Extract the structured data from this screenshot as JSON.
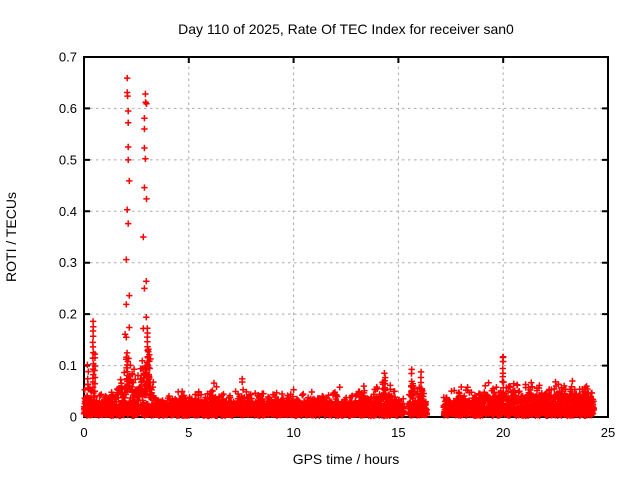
{
  "page": {
    "background": "#ffffff",
    "description": "gnuplot scatter plot of ROTI values versus GPS time"
  },
  "chart_data": {
    "type": "scatter",
    "title": "Day 110 of 2025, Rate Of TEC Index for receiver san0",
    "xlabel": "GPS time / hours",
    "ylabel": "ROTI / TECUs",
    "xlim": [
      0,
      25
    ],
    "ylim": [
      0,
      0.7
    ],
    "xticks": [
      0,
      5,
      10,
      15,
      20,
      25
    ],
    "xtick_labels": [
      "0",
      "5",
      "10",
      "15",
      "20",
      "25"
    ],
    "yticks": [
      0,
      0.1,
      0.2,
      0.3,
      0.4,
      0.5,
      0.6,
      0.7
    ],
    "ytick_labels": [
      "0",
      "0.1",
      "0.2",
      "0.3",
      "0.4",
      "0.5",
      "0.6",
      "0.7"
    ],
    "grid": true,
    "legend_position": "none",
    "marker": "plus",
    "marker_color": "#ff0000",
    "grid_color": "#aaaaaa",
    "border_color": "#000000",
    "data_gaps": [
      [
        15.26,
        15.5
      ],
      [
        16.36,
        17.17
      ]
    ],
    "band_segments": [
      {
        "envelope": [
          [
            0,
            0.055
          ],
          [
            0.15,
            0.065
          ],
          [
            0.3,
            0.055
          ],
          [
            0.45,
            0.05
          ],
          [
            0.7,
            0.045
          ],
          [
            1.0,
            0.045
          ],
          [
            1.3,
            0.05
          ],
          [
            1.55,
            0.065
          ],
          [
            1.75,
            0.1
          ],
          [
            1.95,
            0.125
          ],
          [
            2.15,
            0.13
          ],
          [
            2.35,
            0.1
          ],
          [
            2.5,
            0.075
          ],
          [
            2.65,
            0.09
          ],
          [
            2.8,
            0.12
          ],
          [
            2.95,
            0.145
          ],
          [
            3.1,
            0.15
          ],
          [
            3.25,
            0.09
          ],
          [
            3.4,
            0.05
          ],
          [
            3.7,
            0.04
          ],
          [
            4.0,
            0.042
          ],
          [
            4.3,
            0.048
          ],
          [
            4.6,
            0.055
          ],
          [
            4.9,
            0.05
          ],
          [
            5.2,
            0.048
          ],
          [
            5.5,
            0.052
          ],
          [
            5.8,
            0.046
          ],
          [
            6.1,
            0.058
          ],
          [
            6.3,
            0.06
          ],
          [
            6.6,
            0.045
          ],
          [
            6.9,
            0.044
          ],
          [
            7.2,
            0.05
          ],
          [
            7.5,
            0.058
          ],
          [
            7.8,
            0.05
          ],
          [
            8.1,
            0.046
          ],
          [
            8.4,
            0.05
          ],
          [
            8.7,
            0.043
          ],
          [
            9.0,
            0.048
          ],
          [
            9.4,
            0.046
          ],
          [
            9.8,
            0.05
          ],
          [
            10.2,
            0.044
          ],
          [
            10.6,
            0.047
          ],
          [
            11.0,
            0.05
          ],
          [
            11.4,
            0.045
          ],
          [
            11.8,
            0.05
          ],
          [
            12.2,
            0.047
          ],
          [
            12.6,
            0.043
          ],
          [
            13.0,
            0.05
          ],
          [
            13.3,
            0.057
          ],
          [
            13.6,
            0.05
          ],
          [
            13.9,
            0.055
          ],
          [
            14.15,
            0.07
          ],
          [
            14.4,
            0.08
          ],
          [
            14.65,
            0.06
          ],
          [
            14.9,
            0.05
          ],
          [
            15.1,
            0.042
          ],
          [
            15.26,
            0.035
          ]
        ]
      },
      {
        "envelope": [
          [
            15.5,
            0.045
          ],
          [
            15.62,
            0.08
          ],
          [
            15.78,
            0.055
          ],
          [
            15.95,
            0.048
          ],
          [
            16.08,
            0.075
          ],
          [
            16.22,
            0.045
          ],
          [
            16.36,
            0.03
          ]
        ]
      },
      {
        "envelope": [
          [
            17.17,
            0.038
          ],
          [
            17.45,
            0.05
          ],
          [
            17.75,
            0.055
          ],
          [
            18.05,
            0.06
          ],
          [
            18.35,
            0.055
          ],
          [
            18.65,
            0.05
          ],
          [
            18.95,
            0.055
          ],
          [
            19.25,
            0.068
          ],
          [
            19.55,
            0.06
          ],
          [
            19.8,
            0.065
          ],
          [
            20.0,
            0.08
          ],
          [
            20.2,
            0.062
          ],
          [
            20.5,
            0.068
          ],
          [
            20.8,
            0.06
          ],
          [
            21.1,
            0.065
          ],
          [
            21.4,
            0.073
          ],
          [
            21.7,
            0.063
          ],
          [
            22.0,
            0.07
          ],
          [
            22.3,
            0.063
          ],
          [
            22.6,
            0.073
          ],
          [
            22.9,
            0.063
          ],
          [
            23.2,
            0.07
          ],
          [
            23.5,
            0.063
          ],
          [
            23.8,
            0.068
          ],
          [
            24.05,
            0.073
          ],
          [
            24.33,
            0.05
          ]
        ]
      }
    ],
    "spike_columns": [
      {
        "x": 0.18,
        "y0": 0.03,
        "y1": 0.1,
        "n": 7,
        "w": 0.05
      },
      {
        "x": 0.44,
        "y0": 0.045,
        "y1": 0.185,
        "n": 15,
        "w": 0.04
      },
      {
        "x": 0.52,
        "y0": 0.04,
        "y1": 0.125,
        "n": 8,
        "w": 0.03
      },
      {
        "x": 2.05,
        "y0": 0.05,
        "y1": 0.125,
        "n": 9,
        "w": 0.08
      },
      {
        "x": 3.02,
        "y0": 0.05,
        "y1": 0.175,
        "n": 14,
        "w": 0.05
      },
      {
        "x": 3.12,
        "y0": 0.04,
        "y1": 0.12,
        "n": 7,
        "w": 0.04
      },
      {
        "x": 14.35,
        "y0": 0.04,
        "y1": 0.085,
        "n": 6,
        "w": 0.05
      },
      {
        "x": 15.62,
        "y0": 0.04,
        "y1": 0.093,
        "n": 6,
        "w": 0.04
      },
      {
        "x": 16.08,
        "y0": 0.035,
        "y1": 0.086,
        "n": 6,
        "w": 0.03
      },
      {
        "x": 20.0,
        "y0": 0.035,
        "y1": 0.117,
        "n": 9,
        "w": 0.04
      }
    ],
    "high_points": [
      [
        2.06,
        0.659
      ],
      [
        2.06,
        0.631
      ],
      [
        2.08,
        0.624
      ],
      [
        2.11,
        0.595
      ],
      [
        2.11,
        0.572
      ],
      [
        2.11,
        0.525
      ],
      [
        2.11,
        0.5
      ],
      [
        2.16,
        0.459
      ],
      [
        2.06,
        0.403
      ],
      [
        2.11,
        0.376
      ],
      [
        2.02,
        0.306
      ],
      [
        2.16,
        0.236
      ],
      [
        2.02,
        0.219
      ],
      [
        2.16,
        0.174
      ],
      [
        2.02,
        0.155
      ],
      [
        1.96,
        0.161
      ],
      [
        2.93,
        0.628
      ],
      [
        2.94,
        0.612
      ],
      [
        2.98,
        0.609
      ],
      [
        2.88,
        0.581
      ],
      [
        2.88,
        0.56
      ],
      [
        2.88,
        0.523
      ],
      [
        2.93,
        0.502
      ],
      [
        2.88,
        0.446
      ],
      [
        2.98,
        0.424
      ],
      [
        2.83,
        0.35
      ],
      [
        2.97,
        0.264
      ],
      [
        2.88,
        0.25
      ],
      [
        2.97,
        0.194
      ],
      [
        2.83,
        0.172
      ],
      [
        6.2,
        0.066
      ],
      [
        7.55,
        0.074
      ],
      [
        7.55,
        0.068
      ],
      [
        10.0,
        0.053
      ],
      [
        12.2,
        0.058
      ],
      [
        13.35,
        0.06
      ],
      [
        18.3,
        0.058
      ],
      [
        20.0,
        0.117
      ],
      [
        20.0,
        0.108
      ],
      [
        23.3,
        0.07
      ]
    ]
  }
}
